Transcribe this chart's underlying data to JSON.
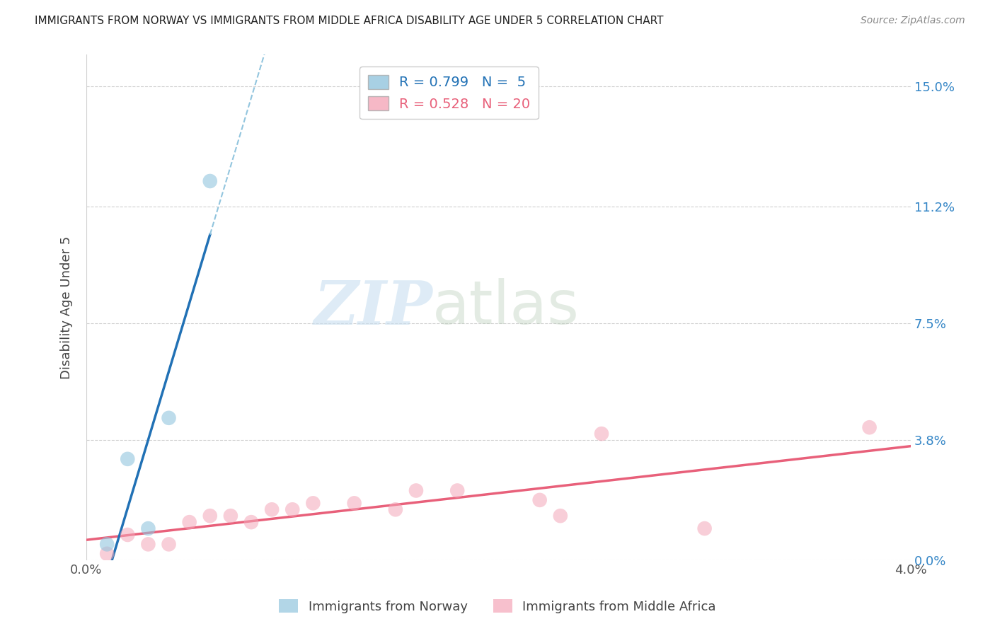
{
  "title": "IMMIGRANTS FROM NORWAY VS IMMIGRANTS FROM MIDDLE AFRICA DISABILITY AGE UNDER 5 CORRELATION CHART",
  "source": "Source: ZipAtlas.com",
  "ylabel": "Disability Age Under 5",
  "xlabel_norway": "Immigrants from Norway",
  "xlabel_africa": "Immigrants from Middle Africa",
  "r_norway": 0.799,
  "n_norway": 5,
  "r_africa": 0.528,
  "n_africa": 20,
  "norway_color": "#92c5de",
  "africa_color": "#f4a6b8",
  "norway_line_color": "#2171b5",
  "africa_line_color": "#e8607a",
  "norway_scatter": [
    [
      0.001,
      0.005
    ],
    [
      0.002,
      0.032
    ],
    [
      0.003,
      0.01
    ],
    [
      0.004,
      0.045
    ],
    [
      0.006,
      0.12
    ]
  ],
  "africa_scatter": [
    [
      0.001,
      0.002
    ],
    [
      0.002,
      0.008
    ],
    [
      0.003,
      0.005
    ],
    [
      0.004,
      0.005
    ],
    [
      0.005,
      0.012
    ],
    [
      0.006,
      0.014
    ],
    [
      0.007,
      0.014
    ],
    [
      0.008,
      0.012
    ],
    [
      0.009,
      0.016
    ],
    [
      0.01,
      0.016
    ],
    [
      0.011,
      0.018
    ],
    [
      0.013,
      0.018
    ],
    [
      0.015,
      0.016
    ],
    [
      0.016,
      0.022
    ],
    [
      0.018,
      0.022
    ],
    [
      0.022,
      0.019
    ],
    [
      0.023,
      0.014
    ],
    [
      0.025,
      0.04
    ],
    [
      0.03,
      0.01
    ],
    [
      0.038,
      0.042
    ]
  ],
  "xlim": [
    0.0,
    0.04
  ],
  "ylim": [
    0.0,
    0.16
  ],
  "yticks": [
    0.0,
    0.038,
    0.075,
    0.112,
    0.15
  ],
  "ytick_labels": [
    "0.0%",
    "3.8%",
    "7.5%",
    "11.2%",
    "15.0%"
  ],
  "xticks": [
    0.0,
    0.04
  ],
  "xtick_labels": [
    "0.0%",
    "4.0%"
  ],
  "watermark_zip": "ZIP",
  "watermark_atlas": "atlas",
  "background_color": "#ffffff"
}
